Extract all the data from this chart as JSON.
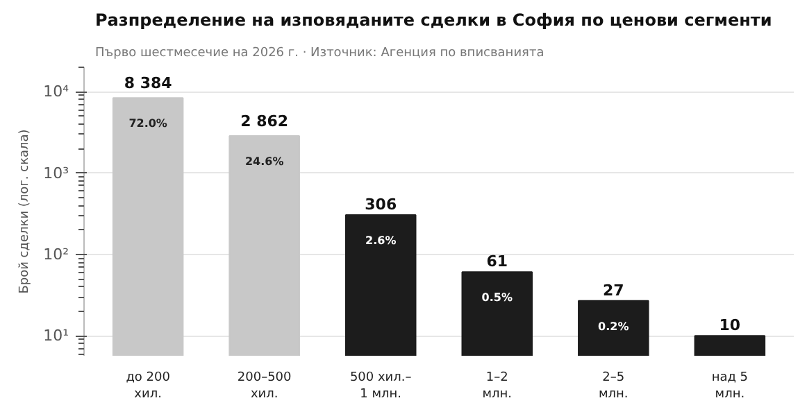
{
  "chart_data": {
    "type": "bar",
    "title": "Разпределение на изповяданите сделки в София по ценови сегменти",
    "subtitle": "Първо шестмесечие на 2026 г.  ·  Източник: Агенция по вписванията",
    "ylabel": "Брой сделки (лог. скала)",
    "categories": [
      "до 200\nхил.",
      "200–500\nхил.",
      "500 хил.–\n1 млн.",
      "1–2\nмлн.",
      "2–5\nмлн.",
      "над 5\nмлн."
    ],
    "values": [
      8384,
      2862,
      306,
      61,
      27,
      10
    ],
    "colors": [
      "#c8c8c8",
      "#c8c8c8",
      "#1c1c1c",
      "#1c1c1c",
      "#1c1c1c",
      "#1c1c1c"
    ],
    "value_labels": [
      "8 384",
      "2 862",
      "306",
      "61",
      "27",
      "10"
    ],
    "annotations": [
      {
        "text": "72.0%",
        "x": "до 200\nхил.",
        "y": 8384
      },
      {
        "text": "24.6%",
        "x": "200–500\nхил.",
        "y": 2862
      },
      {
        "text": "2.6%",
        "x": "500 хил.–\n1 млн.",
        "y": 306
      },
      {
        "text": "0.5%",
        "x": "1–2\nмлн.",
        "y": 61
      },
      {
        "text": "0.2%",
        "x": "2–5\nмлн.",
        "y": 27
      }
    ],
    "log": true,
    "ylim": [
      5.7,
      20000
    ],
    "yticks": [
      {
        "value": 10,
        "label": "10¹"
      },
      {
        "value": 100,
        "label": "10²"
      },
      {
        "value": 1000,
        "label": "10³"
      },
      {
        "value": 10000,
        "label": "10⁴"
      }
    ],
    "grid": "y"
  }
}
